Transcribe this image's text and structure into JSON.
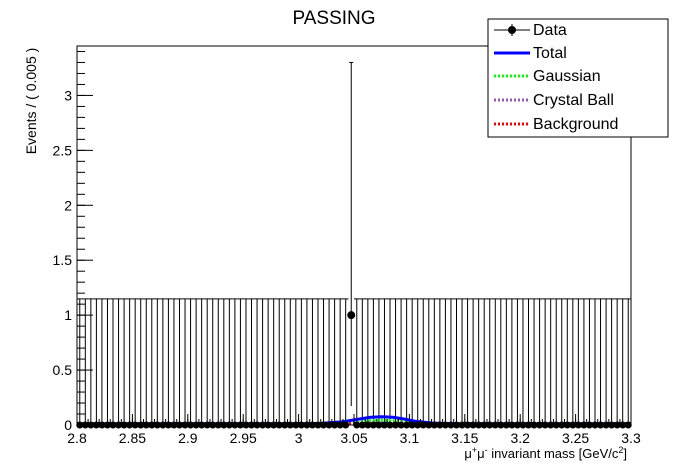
{
  "chart_data": {
    "type": "scatter",
    "title": "PASSING",
    "xlabel": "μ⁺μ⁻ invariant mass [GeV/c²]",
    "xlabel_parts": {
      "pre": "μ",
      "sup1": "+",
      "mid": "μ",
      "sup2": "-",
      "post": " invariant mass [GeV/c",
      "sup3": "2",
      "end": "]"
    },
    "ylabel": "Events / ( 0.005 )",
    "xlim": [
      2.8,
      3.3
    ],
    "ylim": [
      0,
      3.45
    ],
    "x_ticks": [
      2.8,
      2.85,
      2.9,
      2.95,
      3.0,
      3.05,
      3.1,
      3.15,
      3.2,
      3.25,
      3.3
    ],
    "x_tick_labels": [
      "2.8",
      "2.85",
      "2.9",
      "2.95",
      "3",
      "3.05",
      "3.1",
      "3.15",
      "3.2",
      "3.25",
      "3.3"
    ],
    "y_ticks": [
      0,
      0.5,
      1,
      1.5,
      2,
      2.5,
      3
    ],
    "y_tick_labels": [
      "0",
      "0.5",
      "1",
      "1.5",
      "2",
      "2.5",
      "3"
    ],
    "bin_width": 0.005,
    "empty_bin_error_up": 1.148,
    "filled_bins": [
      {
        "x": 3.0475,
        "y": 1,
        "err_low": 0.827,
        "err_high": 2.3
      }
    ],
    "series": [
      {
        "name": "Data",
        "color": "#000000",
        "style": "marker-errorbar"
      },
      {
        "name": "Total",
        "color": "#0000ff",
        "style": "solid"
      },
      {
        "name": "Gaussian",
        "color": "#00ff00",
        "style": "dotted"
      },
      {
        "name": "Crystal Ball",
        "color": "#9b59b6",
        "style": "dotted"
      },
      {
        "name": "Background",
        "color": "#ff0000",
        "style": "dotted"
      }
    ],
    "total_curve": {
      "x": [
        2.8,
        3.0,
        3.02,
        3.04,
        3.055,
        3.065,
        3.075,
        3.085,
        3.095,
        3.105,
        3.12,
        3.14,
        3.3
      ],
      "y": [
        0.012,
        0.012,
        0.015,
        0.03,
        0.055,
        0.07,
        0.075,
        0.07,
        0.055,
        0.035,
        0.018,
        0.012,
        0.012
      ]
    },
    "gaussian_curve": {
      "x": [
        2.8,
        3.02,
        3.04,
        3.055,
        3.065,
        3.075,
        3.085,
        3.095,
        3.11,
        3.13,
        3.3
      ],
      "y": [
        0.0,
        0.0,
        0.008,
        0.025,
        0.04,
        0.045,
        0.04,
        0.027,
        0.01,
        0.0,
        0.0
      ]
    },
    "crystal_ball_curve": {
      "x": [
        2.8,
        3.0,
        3.03,
        3.05,
        3.065,
        3.075,
        3.085,
        3.1,
        3.12,
        3.3
      ],
      "y": [
        0.0,
        0.002,
        0.008,
        0.02,
        0.03,
        0.033,
        0.028,
        0.015,
        0.003,
        0.0
      ]
    },
    "background_curve": {
      "x": [
        2.8,
        3.3
      ],
      "y": [
        0.012,
        0.012
      ]
    },
    "legend_position": "top-right",
    "grid": false
  }
}
